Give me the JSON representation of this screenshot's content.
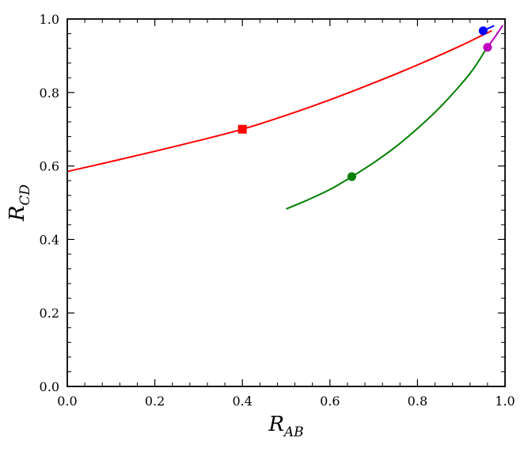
{
  "chart_data": {
    "type": "line",
    "title": "",
    "xlabel": {
      "main": "R",
      "sub": "AB"
    },
    "ylabel": {
      "main": "R",
      "sub": "CD"
    },
    "xlim": [
      0.0,
      1.0
    ],
    "ylim": [
      0.0,
      1.0
    ],
    "xticks": [
      "0.0",
      "0.2",
      "0.4",
      "0.6",
      "0.8",
      "1.0"
    ],
    "yticks": [
      "0.0",
      "0.2",
      "0.4",
      "0.6",
      "0.8",
      "1.0"
    ],
    "grid": false,
    "series": [
      {
        "color": "#ff0000",
        "x": [
          0.0,
          0.1,
          0.2,
          0.3,
          0.4,
          0.5,
          0.6,
          0.7,
          0.8,
          0.9,
          0.95,
          0.97
        ],
        "y": [
          0.585,
          0.612,
          0.64,
          0.669,
          0.7,
          0.738,
          0.78,
          0.826,
          0.875,
          0.928,
          0.957,
          0.968
        ]
      },
      {
        "color": "#008000",
        "x": [
          0.5,
          0.55,
          0.6,
          0.65,
          0.7,
          0.75,
          0.8,
          0.85,
          0.9,
          0.93,
          0.955
        ],
        "y": [
          0.483,
          0.508,
          0.536,
          0.571,
          0.609,
          0.652,
          0.702,
          0.758,
          0.823,
          0.868,
          0.915
        ]
      },
      {
        "color": "#0000ff",
        "x": [
          0.95,
          0.975
        ],
        "y": [
          0.968,
          0.982
        ]
      },
      {
        "color": "#bf00bf",
        "x": [
          0.955,
          0.975,
          0.995
        ],
        "y": [
          0.915,
          0.948,
          0.983
        ]
      }
    ],
    "markers": [
      {
        "shape": "square",
        "color": "#ff0000",
        "x": 0.4,
        "y": 0.7
      },
      {
        "shape": "circle",
        "color": "#008000",
        "x": 0.65,
        "y": 0.571
      },
      {
        "shape": "circle",
        "color": "#0000ff",
        "x": 0.95,
        "y": 0.968
      },
      {
        "shape": "circle",
        "color": "#bf00bf",
        "x": 0.96,
        "y": 0.923
      }
    ]
  }
}
